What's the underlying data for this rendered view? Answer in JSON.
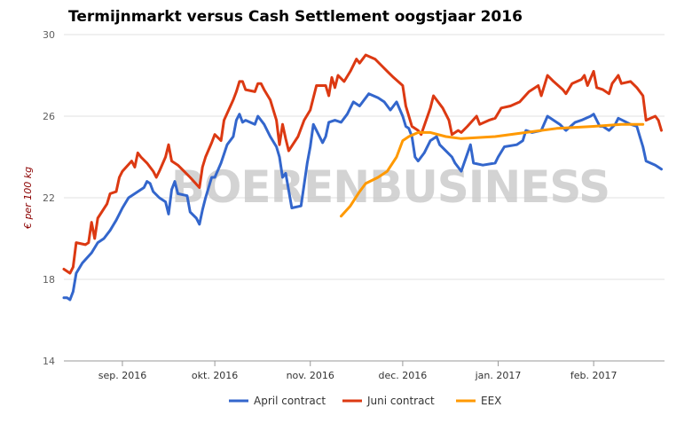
{
  "chart_data": {
    "type": "line",
    "title": "Termijnmarkt versus Cash Settlement oogstjaar 2016",
    "ylabel": "€ per 100 kg",
    "xlabel": "",
    "ylim": [
      14,
      30
    ],
    "yticks": [
      14,
      18,
      22,
      26,
      30
    ],
    "xlim": [
      "2016-08-13",
      "2017-02-24"
    ],
    "xticks": [
      {
        "date": "2016-09-01",
        "label": "sep. 2016"
      },
      {
        "date": "2016-10-01",
        "label": "okt. 2016"
      },
      {
        "date": "2016-11-01",
        "label": "nov. 2016"
      },
      {
        "date": "2016-12-01",
        "label": "dec. 2016"
      },
      {
        "date": "2017-01-01",
        "label": "jan. 2017"
      },
      {
        "date": "2017-02-01",
        "label": "feb. 2017"
      }
    ],
    "grid": "horizontal",
    "legend_position": "bottom",
    "watermark": "BOERENBUSINESS",
    "series": [
      {
        "name": "April contract",
        "color": "#3366cc",
        "points": [
          [
            "2016-08-13",
            17.1
          ],
          [
            "2016-08-14",
            17.1
          ],
          [
            "2016-08-15",
            17.0
          ],
          [
            "2016-08-16",
            17.4
          ],
          [
            "2016-08-17",
            18.3
          ],
          [
            "2016-08-19",
            18.8
          ],
          [
            "2016-08-22",
            19.3
          ],
          [
            "2016-08-24",
            19.8
          ],
          [
            "2016-08-26",
            20.0
          ],
          [
            "2016-08-28",
            20.4
          ],
          [
            "2016-08-30",
            20.9
          ],
          [
            "2016-09-01",
            21.5
          ],
          [
            "2016-09-03",
            22.0
          ],
          [
            "2016-09-06",
            22.3
          ],
          [
            "2016-09-08",
            22.5
          ],
          [
            "2016-09-09",
            22.8
          ],
          [
            "2016-09-10",
            22.7
          ],
          [
            "2016-09-11",
            22.3
          ],
          [
            "2016-09-13",
            22.0
          ],
          [
            "2016-09-15",
            21.8
          ],
          [
            "2016-09-16",
            21.2
          ],
          [
            "2016-09-17",
            22.4
          ],
          [
            "2016-09-18",
            22.8
          ],
          [
            "2016-09-19",
            22.2
          ],
          [
            "2016-09-22",
            22.1
          ],
          [
            "2016-09-23",
            21.3
          ],
          [
            "2016-09-25",
            21.0
          ],
          [
            "2016-09-26",
            20.7
          ],
          [
            "2016-09-27",
            21.4
          ],
          [
            "2016-09-28",
            22.0
          ],
          [
            "2016-09-30",
            23.0
          ],
          [
            "2016-10-01",
            23.0
          ],
          [
            "2016-10-03",
            23.7
          ],
          [
            "2016-10-05",
            24.6
          ],
          [
            "2016-10-07",
            25.0
          ],
          [
            "2016-10-08",
            25.8
          ],
          [
            "2016-10-09",
            26.1
          ],
          [
            "2016-10-10",
            25.7
          ],
          [
            "2016-10-11",
            25.8
          ],
          [
            "2016-10-14",
            25.6
          ],
          [
            "2016-10-15",
            26.0
          ],
          [
            "2016-10-17",
            25.6
          ],
          [
            "2016-10-19",
            25.0
          ],
          [
            "2016-10-21",
            24.5
          ],
          [
            "2016-10-22",
            24.0
          ],
          [
            "2016-10-23",
            23.0
          ],
          [
            "2016-10-24",
            23.2
          ],
          [
            "2016-10-26",
            21.5
          ],
          [
            "2016-10-29",
            21.6
          ],
          [
            "2016-10-31",
            23.7
          ],
          [
            "2016-11-01",
            24.5
          ],
          [
            "2016-11-02",
            25.6
          ],
          [
            "2016-11-03",
            25.3
          ],
          [
            "2016-11-05",
            24.7
          ],
          [
            "2016-11-06",
            25.0
          ],
          [
            "2016-11-07",
            25.7
          ],
          [
            "2016-11-09",
            25.8
          ],
          [
            "2016-11-11",
            25.7
          ],
          [
            "2016-11-13",
            26.1
          ],
          [
            "2016-11-15",
            26.7
          ],
          [
            "2016-11-17",
            26.5
          ],
          [
            "2016-11-20",
            27.1
          ],
          [
            "2016-11-23",
            26.9
          ],
          [
            "2016-11-25",
            26.7
          ],
          [
            "2016-11-27",
            26.3
          ],
          [
            "2016-11-29",
            26.7
          ],
          [
            "2016-12-01",
            26.0
          ],
          [
            "2016-12-02",
            25.5
          ],
          [
            "2016-12-03",
            25.4
          ],
          [
            "2016-12-04",
            25.0
          ],
          [
            "2016-12-05",
            24.0
          ],
          [
            "2016-12-06",
            23.8
          ],
          [
            "2016-12-08",
            24.2
          ],
          [
            "2016-12-10",
            24.8
          ],
          [
            "2016-12-12",
            25.0
          ],
          [
            "2016-12-13",
            24.6
          ],
          [
            "2016-12-15",
            24.3
          ],
          [
            "2016-12-17",
            24.0
          ],
          [
            "2016-12-18",
            23.7
          ],
          [
            "2016-12-20",
            23.3
          ],
          [
            "2016-12-23",
            24.6
          ],
          [
            "2016-12-24",
            23.7
          ],
          [
            "2016-12-27",
            23.6
          ],
          [
            "2016-12-31",
            23.7
          ],
          [
            "2017-01-01",
            24.0
          ],
          [
            "2017-01-03",
            24.5
          ],
          [
            "2017-01-07",
            24.6
          ],
          [
            "2017-01-09",
            24.8
          ],
          [
            "2017-01-10",
            25.3
          ],
          [
            "2017-01-12",
            25.2
          ],
          [
            "2017-01-15",
            25.3
          ],
          [
            "2017-01-17",
            26.0
          ],
          [
            "2017-01-19",
            25.8
          ],
          [
            "2017-01-21",
            25.6
          ],
          [
            "2017-01-23",
            25.3
          ],
          [
            "2017-01-26",
            25.7
          ],
          [
            "2017-01-28",
            25.8
          ],
          [
            "2017-01-31",
            26.0
          ],
          [
            "2017-02-01",
            26.1
          ],
          [
            "2017-02-03",
            25.5
          ],
          [
            "2017-02-04",
            25.5
          ],
          [
            "2017-02-06",
            25.3
          ],
          [
            "2017-02-08",
            25.6
          ],
          [
            "2017-02-09",
            25.9
          ],
          [
            "2017-02-13",
            25.6
          ],
          [
            "2017-02-15",
            25.5
          ],
          [
            "2017-02-16",
            25.0
          ],
          [
            "2017-02-17",
            24.5
          ],
          [
            "2017-02-18",
            23.8
          ],
          [
            "2017-02-21",
            23.6
          ],
          [
            "2017-02-22",
            23.5
          ],
          [
            "2017-02-23",
            23.4
          ]
        ]
      },
      {
        "name": "Juni contract",
        "color": "#dc3912",
        "points": [
          [
            "2016-08-13",
            18.5
          ],
          [
            "2016-08-15",
            18.3
          ],
          [
            "2016-08-16",
            18.6
          ],
          [
            "2016-08-17",
            19.8
          ],
          [
            "2016-08-20",
            19.7
          ],
          [
            "2016-08-21",
            19.8
          ],
          [
            "2016-08-22",
            20.8
          ],
          [
            "2016-08-23",
            20.0
          ],
          [
            "2016-08-24",
            21.0
          ],
          [
            "2016-08-27",
            21.7
          ],
          [
            "2016-08-28",
            22.2
          ],
          [
            "2016-08-30",
            22.3
          ],
          [
            "2016-08-31",
            23.0
          ],
          [
            "2016-09-01",
            23.3
          ],
          [
            "2016-09-04",
            23.8
          ],
          [
            "2016-09-05",
            23.5
          ],
          [
            "2016-09-06",
            24.2
          ],
          [
            "2016-09-07",
            24.0
          ],
          [
            "2016-09-09",
            23.7
          ],
          [
            "2016-09-11",
            23.3
          ],
          [
            "2016-09-12",
            23.0
          ],
          [
            "2016-09-13",
            23.3
          ],
          [
            "2016-09-15",
            24.0
          ],
          [
            "2016-09-16",
            24.6
          ],
          [
            "2016-09-17",
            23.8
          ],
          [
            "2016-09-19",
            23.6
          ],
          [
            "2016-09-21",
            23.3
          ],
          [
            "2016-09-23",
            23.0
          ],
          [
            "2016-09-26",
            22.5
          ],
          [
            "2016-09-27",
            23.5
          ],
          [
            "2016-09-28",
            24.0
          ],
          [
            "2016-09-30",
            24.7
          ],
          [
            "2016-10-01",
            25.1
          ],
          [
            "2016-10-03",
            24.8
          ],
          [
            "2016-10-04",
            25.8
          ],
          [
            "2016-10-07",
            26.8
          ],
          [
            "2016-10-08",
            27.2
          ],
          [
            "2016-10-09",
            27.7
          ],
          [
            "2016-10-10",
            27.7
          ],
          [
            "2016-10-11",
            27.3
          ],
          [
            "2016-10-14",
            27.2
          ],
          [
            "2016-10-15",
            27.6
          ],
          [
            "2016-10-16",
            27.6
          ],
          [
            "2016-10-17",
            27.3
          ],
          [
            "2016-10-19",
            26.8
          ],
          [
            "2016-10-21",
            25.8
          ],
          [
            "2016-10-22",
            24.6
          ],
          [
            "2016-10-23",
            25.6
          ],
          [
            "2016-10-24",
            24.9
          ],
          [
            "2016-10-25",
            24.3
          ],
          [
            "2016-10-28",
            25.0
          ],
          [
            "2016-10-30",
            25.8
          ],
          [
            "2016-11-01",
            26.3
          ],
          [
            "2016-11-02",
            26.9
          ],
          [
            "2016-11-03",
            27.5
          ],
          [
            "2016-11-06",
            27.5
          ],
          [
            "2016-11-07",
            27.0
          ],
          [
            "2016-11-08",
            27.9
          ],
          [
            "2016-11-09",
            27.4
          ],
          [
            "2016-11-10",
            28.0
          ],
          [
            "2016-11-12",
            27.7
          ],
          [
            "2016-11-14",
            28.2
          ],
          [
            "2016-11-16",
            28.8
          ],
          [
            "2016-11-17",
            28.6
          ],
          [
            "2016-11-19",
            29.0
          ],
          [
            "2016-11-22",
            28.8
          ],
          [
            "2016-11-24",
            28.5
          ],
          [
            "2016-11-26",
            28.2
          ],
          [
            "2016-11-28",
            27.9
          ],
          [
            "2016-12-01",
            27.5
          ],
          [
            "2016-12-02",
            26.5
          ],
          [
            "2016-12-04",
            25.5
          ],
          [
            "2016-12-06",
            25.3
          ],
          [
            "2016-12-07",
            25.1
          ],
          [
            "2016-12-10",
            26.4
          ],
          [
            "2016-12-11",
            27.0
          ],
          [
            "2016-12-14",
            26.4
          ],
          [
            "2016-12-16",
            25.8
          ],
          [
            "2016-12-17",
            25.1
          ],
          [
            "2016-12-19",
            25.3
          ],
          [
            "2016-12-20",
            25.2
          ],
          [
            "2016-12-22",
            25.5
          ],
          [
            "2016-12-25",
            26.0
          ],
          [
            "2016-12-26",
            25.6
          ],
          [
            "2016-12-29",
            25.8
          ],
          [
            "2016-12-31",
            25.9
          ],
          [
            "2017-01-02",
            26.4
          ],
          [
            "2017-01-05",
            26.5
          ],
          [
            "2017-01-08",
            26.7
          ],
          [
            "2017-01-11",
            27.2
          ],
          [
            "2017-01-14",
            27.5
          ],
          [
            "2017-01-15",
            27.0
          ],
          [
            "2017-01-17",
            28.0
          ],
          [
            "2017-01-19",
            27.7
          ],
          [
            "2017-01-22",
            27.3
          ],
          [
            "2017-01-23",
            27.1
          ],
          [
            "2017-01-25",
            27.6
          ],
          [
            "2017-01-28",
            27.8
          ],
          [
            "2017-01-29",
            28.0
          ],
          [
            "2017-01-30",
            27.5
          ],
          [
            "2017-02-01",
            28.2
          ],
          [
            "2017-02-02",
            27.4
          ],
          [
            "2017-02-04",
            27.3
          ],
          [
            "2017-02-06",
            27.1
          ],
          [
            "2017-02-07",
            27.6
          ],
          [
            "2017-02-08",
            27.8
          ],
          [
            "2017-02-09",
            28.0
          ],
          [
            "2017-02-10",
            27.6
          ],
          [
            "2017-02-13",
            27.7
          ],
          [
            "2017-02-15",
            27.4
          ],
          [
            "2017-02-17",
            27.0
          ],
          [
            "2017-02-18",
            25.8
          ],
          [
            "2017-02-21",
            26.0
          ],
          [
            "2017-02-22",
            25.8
          ],
          [
            "2017-02-23",
            25.3
          ]
        ]
      },
      {
        "name": "EEX",
        "color": "#ff9900",
        "points": [
          [
            "2016-11-11",
            21.1
          ],
          [
            "2016-11-14",
            21.6
          ],
          [
            "2016-11-17",
            22.3
          ],
          [
            "2016-11-19",
            22.7
          ],
          [
            "2016-11-23",
            23.0
          ],
          [
            "2016-11-26",
            23.3
          ],
          [
            "2016-11-29",
            24.0
          ],
          [
            "2016-12-01",
            24.8
          ],
          [
            "2016-12-03",
            25.0
          ],
          [
            "2016-12-06",
            25.2
          ],
          [
            "2016-12-10",
            25.2
          ],
          [
            "2016-12-15",
            25.0
          ],
          [
            "2016-12-20",
            24.9
          ],
          [
            "2016-12-31",
            25.0
          ],
          [
            "2017-01-10",
            25.2
          ],
          [
            "2017-01-20",
            25.4
          ],
          [
            "2017-02-01",
            25.5
          ],
          [
            "2017-02-10",
            25.6
          ],
          [
            "2017-02-17",
            25.6
          ]
        ]
      }
    ]
  }
}
